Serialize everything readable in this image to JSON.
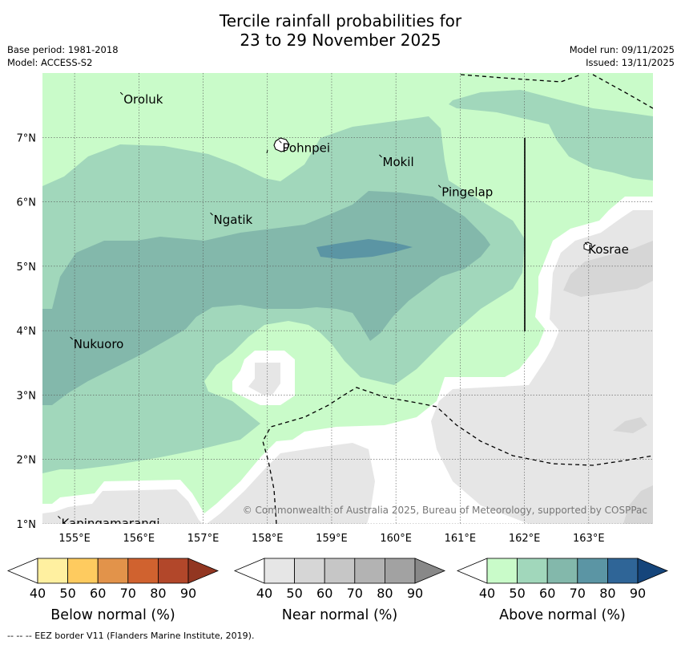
{
  "title": {
    "line1": "Tercile rainfall probabilities for",
    "line2": "23 to 29 November 2025"
  },
  "meta_left": {
    "base_period": "Base period: 1981-2018",
    "model": "Model: ACCESS-S2"
  },
  "meta_right": {
    "model_run": "Model run: 09/11/2025",
    "issued": "Issued: 13/11/2025"
  },
  "map": {
    "lon_range": [
      154.5,
      164.0
    ],
    "lat_range": [
      1.0,
      8.0
    ],
    "lon_ticks": [
      155,
      156,
      157,
      158,
      159,
      160,
      161,
      162,
      163
    ],
    "lon_tick_labels": [
      "155°E",
      "156°E",
      "157°E",
      "158°E",
      "159°E",
      "160°E",
      "161°E",
      "162°E",
      "163°E"
    ],
    "lat_ticks": [
      1,
      2,
      3,
      4,
      5,
      6,
      7
    ],
    "lat_tick_labels": [
      "1°N",
      "2°N",
      "3°N",
      "4°N",
      "5°N",
      "6°N",
      "7°N"
    ],
    "places": [
      {
        "name": "Oroluk",
        "lon": 155.75,
        "lat": 7.65
      },
      {
        "name": "Pohnpei",
        "lon": 158.22,
        "lat": 6.9
      },
      {
        "name": "Mokil",
        "lon": 159.78,
        "lat": 6.68
      },
      {
        "name": "Pingelap",
        "lon": 160.7,
        "lat": 6.21
      },
      {
        "name": "Ngatik",
        "lon": 157.15,
        "lat": 5.78
      },
      {
        "name": "Kosrae",
        "lon": 162.98,
        "lat": 5.32
      },
      {
        "name": "Nukuoro",
        "lon": 154.97,
        "lat": 3.85
      },
      {
        "name": "Kapingamarangi",
        "lon": 154.78,
        "lat": 1.07
      }
    ],
    "copyright": "© Commonwealth of Australia 2025, Bureau of Meteorology, supported by COSPPac"
  },
  "colorbars": [
    {
      "label": "Below normal (%)",
      "ticks": [
        "40",
        "50",
        "60",
        "70",
        "80",
        "90"
      ],
      "colors": [
        "#fff0a0",
        "#fecb5f",
        "#e2934a",
        "#d0622f",
        "#b2472a",
        "#923621"
      ]
    },
    {
      "label": "Near normal (%)",
      "ticks": [
        "40",
        "50",
        "60",
        "70",
        "80",
        "90"
      ],
      "colors": [
        "#e6e6e6",
        "#d6d6d6",
        "#c6c6c6",
        "#b3b3b3",
        "#a2a2a2",
        "#888888"
      ]
    },
    {
      "label": "Above normal (%)",
      "ticks": [
        "40",
        "50",
        "60",
        "70",
        "80",
        "90"
      ],
      "colors": [
        "#c9fbc9",
        "#a1d7bb",
        "#83b8ab",
        "#5b95a4",
        "#2f6597",
        "#15457b"
      ]
    }
  ],
  "footer": "--  --  -- EEZ border V11 (Flanders Marine Institute, 2019)."
}
